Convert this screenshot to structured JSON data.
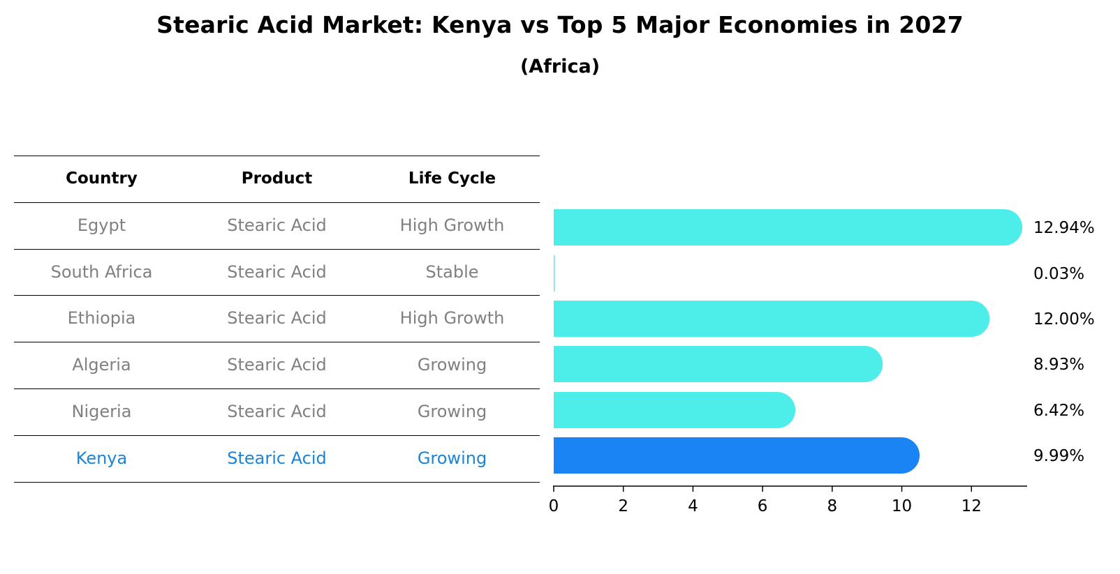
{
  "title": "Stearic Acid Market: Kenya vs Top 5 Major Economies in 2027",
  "subtitle": "(Africa)",
  "table": {
    "headers": [
      "Country",
      "Product",
      "Life Cycle"
    ],
    "rows": [
      [
        "Egypt",
        "Stearic Acid",
        "High Growth"
      ],
      [
        "South Africa",
        "Stearic Acid",
        "Stable"
      ],
      [
        "Ethiopia",
        "Stearic Acid",
        "High Growth"
      ],
      [
        "Algeria",
        "Stearic Acid",
        "Growing"
      ],
      [
        "Nigeria",
        "Stearic Acid",
        "Growing"
      ],
      [
        "Kenya",
        "Stearic Acid",
        "Growing"
      ]
    ],
    "highlight_row": 5
  },
  "colors": {
    "bar": "#4deeea",
    "highlight_bar": "#1a84f5",
    "body_text": "#808080",
    "highlight_text": "#1a84d9"
  },
  "chart_data": {
    "type": "bar",
    "orientation": "horizontal",
    "categories": [
      "Egypt",
      "South Africa",
      "Ethiopia",
      "Algeria",
      "Nigeria",
      "Kenya"
    ],
    "values": [
      12.94,
      0.03,
      12.0,
      8.93,
      6.42,
      9.99
    ],
    "value_labels": [
      "12.94%",
      "0.03%",
      "12.00%",
      "8.93%",
      "6.42%",
      "9.99%"
    ],
    "xlim": [
      0,
      13.6
    ],
    "xticks": [
      0,
      2,
      4,
      6,
      8,
      10,
      12
    ],
    "xtick_labels": [
      "0",
      "2",
      "4",
      "6",
      "8",
      "10",
      "12"
    ],
    "highlight": "Kenya",
    "grid": false
  }
}
